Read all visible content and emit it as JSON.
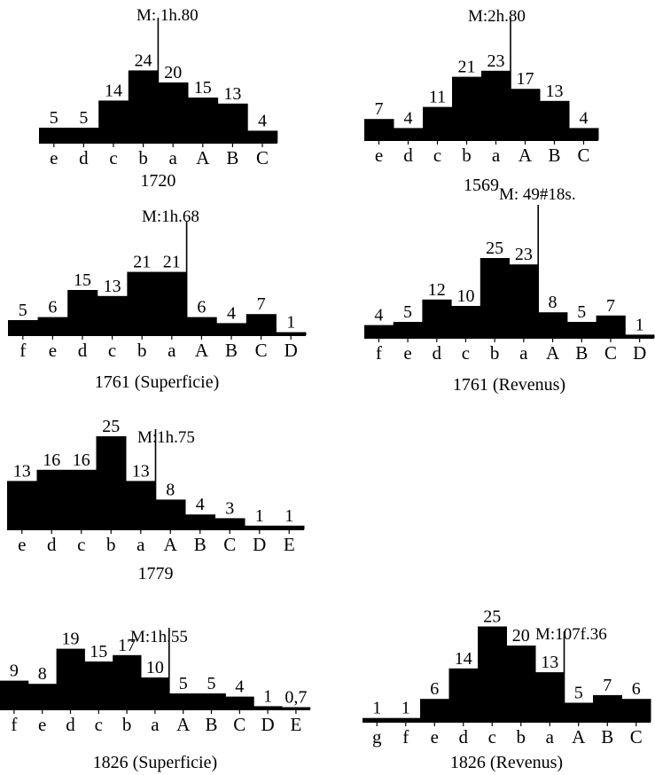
{
  "chart_data": [
    {
      "type": "bar",
      "title": "1720",
      "categories": [
        "e",
        "d",
        "c",
        "b",
        "a",
        "A",
        "B",
        "C"
      ],
      "values": [
        5,
        5,
        14,
        24,
        20,
        15,
        13,
        4
      ],
      "mean_label": "M: 1h.80",
      "mean_position": 4.0
    },
    {
      "type": "bar",
      "title": "1569",
      "categories": [
        "e",
        "d",
        "c",
        "b",
        "a",
        "A",
        "B",
        "C"
      ],
      "values": [
        7,
        4,
        11,
        21,
        23,
        17,
        13,
        4
      ],
      "mean_label": "M:2h.80",
      "mean_position": 5.0
    },
    {
      "type": "bar",
      "title": "1761 (Superficie)",
      "categories": [
        "f",
        "e",
        "d",
        "c",
        "b",
        "a",
        "A",
        "B",
        "C",
        "D"
      ],
      "values": [
        5,
        6,
        15,
        13,
        21,
        21,
        6,
        4,
        7,
        1
      ],
      "mean_label": "M:1h.68",
      "mean_position": 6.0
    },
    {
      "type": "bar",
      "title": "1761 (Revenus)",
      "categories": [
        "f",
        "e",
        "d",
        "c",
        "b",
        "a",
        "A",
        "B",
        "C",
        "D"
      ],
      "values": [
        4,
        5,
        12,
        10,
        25,
        23,
        8,
        5,
        7,
        1
      ],
      "mean_label": "M: 49#18s.",
      "mean_position": 6.0
    },
    {
      "type": "bar",
      "title": "1779",
      "categories": [
        "e",
        "d",
        "c",
        "b",
        "a",
        "A",
        "B",
        "C",
        "D",
        "E"
      ],
      "values": [
        13,
        16,
        16,
        25,
        13,
        8,
        4,
        3,
        1,
        1
      ],
      "mean_label": "M:1h.75",
      "mean_position": 5.0
    },
    {
      "type": "bar",
      "title": "1826 (Superficie)",
      "categories": [
        "f",
        "e",
        "d",
        "c",
        "b",
        "a",
        "A",
        "B",
        "C",
        "D",
        "E"
      ],
      "value_labels": [
        "9",
        "8",
        "19",
        "15",
        "17",
        "10",
        "5",
        "5",
        "4",
        "1",
        "0,7"
      ],
      "values": [
        9,
        8,
        19,
        15,
        17,
        10,
        5,
        5,
        4,
        1,
        0.7
      ],
      "mean_label": "M:1h.55",
      "mean_position": 6.0
    },
    {
      "type": "bar",
      "title": "1826 (Revenus)",
      "categories": [
        "g",
        "f",
        "e",
        "d",
        "c",
        "b",
        "a",
        "A",
        "B",
        "C"
      ],
      "values": [
        1,
        1,
        6,
        14,
        25,
        20,
        13,
        5,
        7,
        6
      ],
      "mean_label": "M:107f.36",
      "mean_position": 7.0
    }
  ]
}
